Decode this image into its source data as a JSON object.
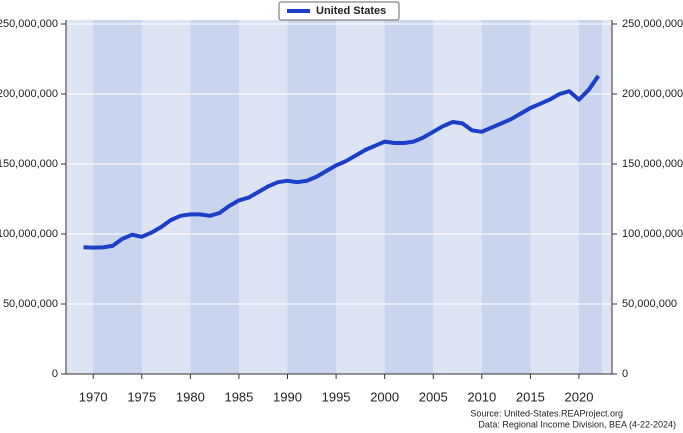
{
  "chart_data": {
    "type": "line",
    "x": [
      1969,
      1970,
      1971,
      1972,
      1973,
      1974,
      1975,
      1976,
      1977,
      1978,
      1979,
      1980,
      1981,
      1982,
      1983,
      1984,
      1985,
      1986,
      1987,
      1988,
      1989,
      1990,
      1991,
      1992,
      1993,
      1994,
      1995,
      1996,
      1997,
      1998,
      1999,
      2000,
      2001,
      2002,
      2003,
      2004,
      2005,
      2006,
      2007,
      2008,
      2009,
      2010,
      2011,
      2012,
      2013,
      2014,
      2015,
      2016,
      2017,
      2018,
      2019,
      2020,
      2021,
      2022
    ],
    "series": [
      {
        "name": "United States",
        "color": "#1c3fc8",
        "values": [
          90500000,
          90300000,
          90400000,
          91500000,
          96500000,
          99500000,
          98000000,
          101000000,
          105000000,
          110000000,
          113000000,
          114000000,
          114000000,
          113000000,
          115000000,
          120000000,
          124000000,
          126000000,
          130000000,
          134000000,
          137000000,
          138000000,
          137000000,
          138000000,
          141000000,
          145000000,
          149000000,
          152000000,
          156000000,
          160000000,
          163000000,
          166000000,
          165000000,
          165000000,
          166000000,
          169000000,
          173000000,
          177000000,
          180000000,
          179000000,
          174000000,
          173000000,
          176000000,
          179000000,
          182000000,
          186000000,
          190000000,
          193000000,
          196000000,
          200000000,
          202000000,
          196000000,
          203000000,
          213000000
        ]
      }
    ],
    "xlim": [
      1967.2,
      2023.4
    ],
    "xticks": [
      1970,
      1975,
      1980,
      1985,
      1990,
      1995,
      2000,
      2005,
      2010,
      2015,
      2020
    ],
    "ylim": [
      0,
      250000000
    ],
    "yticks": [
      0,
      {
        "value": 50000000,
        "label": "50,000,000"
      },
      {
        "value": 100000000,
        "label": "100,000,000"
      },
      {
        "value": 150000000,
        "label": "150,000,000"
      },
      {
        "value": 200000000,
        "label": "200,000,000"
      },
      {
        "value": 250000000,
        "label": "250,000,000"
      }
    ],
    "grid": true,
    "legend": "top",
    "source": [
      "Source: United-States.REAProject.org",
      "Data: Regional Income Division, BEA (4-22-2024)"
    ]
  }
}
